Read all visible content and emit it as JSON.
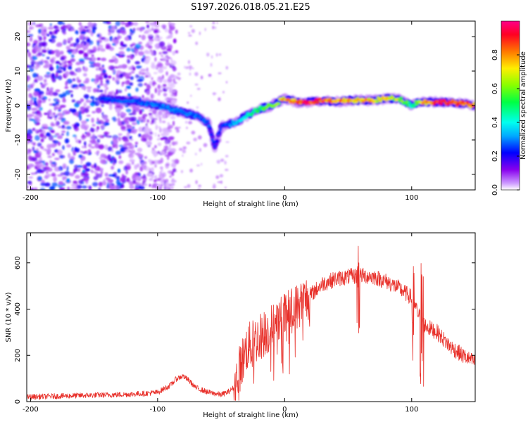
{
  "title": "S197.2026.018.05.21.E25",
  "colorbar": {
    "label": "Normalized spectral amplitude",
    "range": [
      0.0,
      1.0
    ],
    "ticks": [
      "0.0",
      "0.2",
      "0.4",
      "0.6",
      "0.8"
    ],
    "tick_values": [
      0.0,
      0.2,
      0.4,
      0.6,
      0.8
    ]
  },
  "chart_data": [
    {
      "type": "heatmap",
      "name": "spectrogram",
      "xlabel": "Height of straight line (km)",
      "ylabel": "Frequency (Hz)",
      "xlim": [
        -203,
        150
      ],
      "ylim": [
        -24.5,
        24.5
      ],
      "xticks": [
        -200,
        -100,
        0,
        100
      ],
      "xtick_labels": [
        "-200",
        "-100",
        "0",
        "100"
      ],
      "yticks": [
        20,
        10,
        0,
        -10,
        -20
      ],
      "ytick_labels": [
        "20",
        "10",
        "0",
        "-10",
        "-20"
      ],
      "ridge": {
        "description": "dominant frequency vs height",
        "x": [
          -145,
          -130,
          -115,
          -100,
          -90,
          -80,
          -70,
          -60,
          -55,
          -50,
          -40,
          -30,
          -20,
          -10,
          0,
          10,
          20,
          30,
          40,
          50,
          60,
          70,
          80,
          90,
          100,
          105,
          110,
          120,
          130,
          140,
          150
        ],
        "y": [
          2,
          1.5,
          1,
          0,
          -1,
          -2,
          -3,
          -5,
          -12,
          -6,
          -5,
          -3,
          -1,
          0,
          2,
          1,
          1,
          1.5,
          1,
          1.5,
          1.5,
          1.5,
          2,
          2,
          0,
          1,
          1,
          1,
          1,
          0.5,
          0
        ],
        "amplitude": [
          0.25,
          0.28,
          0.3,
          0.3,
          0.32,
          0.3,
          0.3,
          0.28,
          0.25,
          0.25,
          0.35,
          0.45,
          0.55,
          0.65,
          0.8,
          0.95,
          1.0,
          0.95,
          0.9,
          0.85,
          0.8,
          0.8,
          0.75,
          0.7,
          0.5,
          0.6,
          0.85,
          0.95,
          0.95,
          0.9,
          0.85
        ]
      },
      "noise_region": {
        "x": [
          -203,
          -100
        ],
        "amplitude": [
          0.05,
          0.3
        ]
      }
    },
    {
      "type": "line",
      "name": "snr",
      "xlabel": "Height of straight line (km)",
      "ylabel": "SNR (10 * v/v)",
      "xlim": [
        -203,
        150
      ],
      "ylim": [
        0,
        730
      ],
      "xticks": [
        -200,
        -100,
        0,
        100
      ],
      "xtick_labels": [
        "-200",
        "-100",
        "0",
        "100"
      ],
      "yticks": [
        0,
        200,
        400,
        600
      ],
      "ytick_labels": [
        "0",
        "200",
        "400",
        "600"
      ],
      "series": [
        {
          "name": "SNR",
          "color": "#e8302a",
          "x": [
            -203,
            -190,
            -170,
            -150,
            -130,
            -110,
            -100,
            -90,
            -85,
            -80,
            -75,
            -70,
            -65,
            -60,
            -55,
            -50,
            -45,
            -40,
            -35,
            -30,
            -20,
            -10,
            0,
            10,
            20,
            30,
            40,
            50,
            60,
            70,
            80,
            90,
            100,
            105,
            110,
            120,
            130,
            140,
            150
          ],
          "y": [
            20,
            22,
            25,
            28,
            30,
            35,
            40,
            70,
            100,
            110,
            90,
            60,
            50,
            40,
            35,
            30,
            40,
            60,
            150,
            230,
            280,
            320,
            370,
            410,
            460,
            510,
            530,
            540,
            545,
            540,
            520,
            490,
            450,
            380,
            330,
            300,
            240,
            200,
            170
          ],
          "noise_amplitude": 35
        }
      ]
    }
  ]
}
